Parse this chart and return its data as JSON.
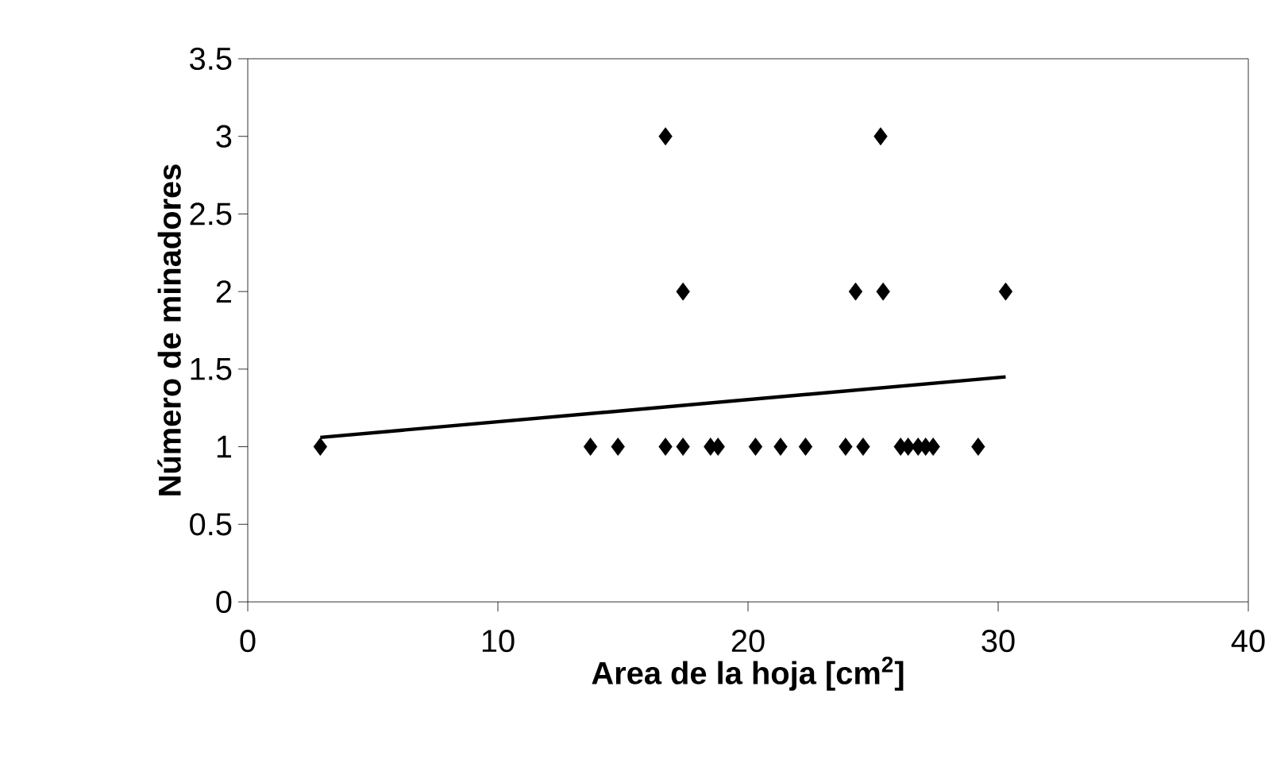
{
  "chart_data": {
    "type": "scatter",
    "xlabel": "Area de la hoja [cm$^{2}$]",
    "ylabel": "Número de minadores",
    "xlim": [
      0,
      40
    ],
    "ylim": [
      0,
      3.5
    ],
    "xticks": [
      0,
      10,
      20,
      30,
      40
    ],
    "yticks": [
      0,
      {
        "value": 0.5,
        "label": "0.5"
      },
      1,
      {
        "value": 1.5,
        "label": "1.5"
      },
      2,
      {
        "value": 2.5,
        "label": "2.5"
      },
      3,
      {
        "value": 3.5,
        "label": "3.5"
      }
    ],
    "grid": false,
    "marker": "diamond",
    "series": [
      {
        "type": "scatter",
        "color": "#000000",
        "x": [
          2.9,
          13.7,
          14.8,
          16.7,
          17.4,
          18.5,
          18.8,
          20.3,
          21.3,
          22.3,
          23.9,
          24.6,
          26.1,
          26.4,
          26.8,
          27.1,
          27.4,
          29.2,
          17.4,
          24.3,
          25.4,
          30.3,
          16.7,
          25.3
        ],
        "values": [
          1,
          1,
          1,
          1,
          1,
          1,
          1,
          1,
          1,
          1,
          1,
          1,
          1,
          1,
          1,
          1,
          1,
          1,
          2,
          2,
          2,
          2,
          3,
          3
        ]
      },
      {
        "type": "line",
        "color": "#000000",
        "marker": "none",
        "line_style": "solid",
        "x": [
          2.9,
          30.3
        ],
        "values": [
          1.06,
          1.45
        ]
      }
    ]
  }
}
